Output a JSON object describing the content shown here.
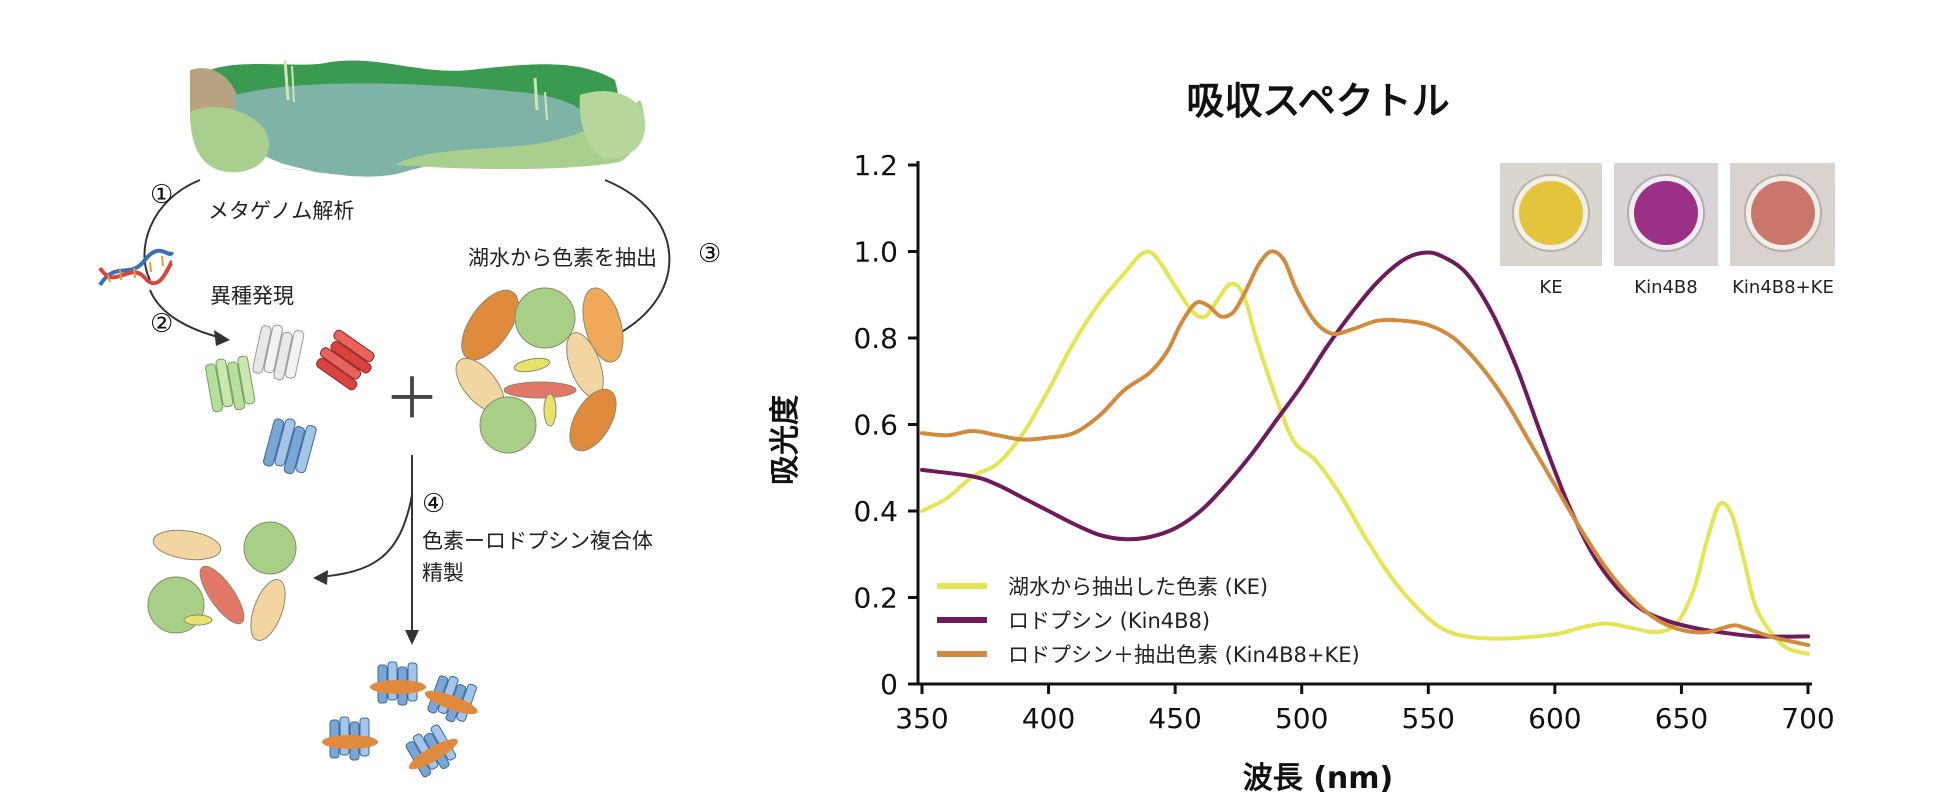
{
  "diagram": {
    "step1": {
      "num": "①",
      "label": "メタゲノム解析"
    },
    "step_expr": {
      "num": "②",
      "label": "異種発現"
    },
    "step3": {
      "num": "③",
      "label": "湖水から色素を抽出"
    },
    "step4": {
      "num": "④",
      "label_line1": "色素ーロドプシン複合体",
      "label_line2": "精製"
    },
    "plus": "＋"
  },
  "swatches": [
    {
      "label": "KE",
      "color": "#e3c43c"
    },
    {
      "label": "Kin4B8",
      "color": "#9c2f86"
    },
    {
      "label": "Kin4B8+KE",
      "color": "#c9776a"
    }
  ],
  "chart_data": {
    "type": "line",
    "title": "吸収スペクトル",
    "xlabel": "波長 (nm)",
    "ylabel": "吸光度",
    "xlim": [
      350,
      700
    ],
    "ylim": [
      0,
      1.2
    ],
    "x_ticks": [
      "350",
      "400",
      "450",
      "500",
      "550",
      "600",
      "650",
      "700"
    ],
    "y_ticks": [
      "0",
      "0.2",
      "0.4",
      "0.6",
      "0.8",
      "1.0",
      "1.2"
    ],
    "legend_position": "bottom-left",
    "series": [
      {
        "name": "湖水から抽出した色素 (KE)",
        "color": "#e5e452",
        "points": [
          [
            350,
            0.4
          ],
          [
            360,
            0.43
          ],
          [
            370,
            0.48
          ],
          [
            380,
            0.51
          ],
          [
            390,
            0.58
          ],
          [
            400,
            0.68
          ],
          [
            410,
            0.79
          ],
          [
            420,
            0.88
          ],
          [
            430,
            0.95
          ],
          [
            437,
            0.995
          ],
          [
            442,
            0.99
          ],
          [
            450,
            0.92
          ],
          [
            457,
            0.86
          ],
          [
            462,
            0.85
          ],
          [
            467,
            0.89
          ],
          [
            472,
            0.925
          ],
          [
            477,
            0.9
          ],
          [
            482,
            0.8
          ],
          [
            490,
            0.66
          ],
          [
            497,
            0.56
          ],
          [
            505,
            0.52
          ],
          [
            515,
            0.44
          ],
          [
            525,
            0.34
          ],
          [
            535,
            0.25
          ],
          [
            545,
            0.18
          ],
          [
            555,
            0.13
          ],
          [
            565,
            0.11
          ],
          [
            580,
            0.105
          ],
          [
            600,
            0.115
          ],
          [
            610,
            0.13
          ],
          [
            620,
            0.14
          ],
          [
            630,
            0.13
          ],
          [
            640,
            0.12
          ],
          [
            648,
            0.14
          ],
          [
            655,
            0.22
          ],
          [
            660,
            0.33
          ],
          [
            665,
            0.415
          ],
          [
            670,
            0.39
          ],
          [
            675,
            0.28
          ],
          [
            680,
            0.17
          ],
          [
            690,
            0.09
          ],
          [
            700,
            0.07
          ]
        ]
      },
      {
        "name": "ロドプシン (Kin4B8)",
        "color": "#6d1b5c",
        "points": [
          [
            350,
            0.495
          ],
          [
            370,
            0.48
          ],
          [
            380,
            0.46
          ],
          [
            390,
            0.43
          ],
          [
            400,
            0.4
          ],
          [
            410,
            0.37
          ],
          [
            420,
            0.345
          ],
          [
            430,
            0.335
          ],
          [
            440,
            0.34
          ],
          [
            450,
            0.36
          ],
          [
            460,
            0.4
          ],
          [
            470,
            0.46
          ],
          [
            480,
            0.53
          ],
          [
            490,
            0.61
          ],
          [
            500,
            0.69
          ],
          [
            510,
            0.78
          ],
          [
            520,
            0.86
          ],
          [
            530,
            0.93
          ],
          [
            540,
            0.98
          ],
          [
            548,
            0.997
          ],
          [
            555,
            0.99
          ],
          [
            565,
            0.95
          ],
          [
            575,
            0.86
          ],
          [
            585,
            0.73
          ],
          [
            595,
            0.57
          ],
          [
            605,
            0.42
          ],
          [
            615,
            0.3
          ],
          [
            625,
            0.22
          ],
          [
            635,
            0.17
          ],
          [
            645,
            0.145
          ],
          [
            655,
            0.13
          ],
          [
            665,
            0.12
          ],
          [
            680,
            0.11
          ],
          [
            700,
            0.11
          ]
        ]
      },
      {
        "name": "ロドプシン＋抽出色素 (Kin4B8+KE)",
        "color": "#d28a3c",
        "points": [
          [
            350,
            0.58
          ],
          [
            360,
            0.575
          ],
          [
            370,
            0.585
          ],
          [
            380,
            0.575
          ],
          [
            390,
            0.565
          ],
          [
            400,
            0.57
          ],
          [
            410,
            0.58
          ],
          [
            420,
            0.62
          ],
          [
            430,
            0.68
          ],
          [
            440,
            0.72
          ],
          [
            447,
            0.77
          ],
          [
            452,
            0.83
          ],
          [
            458,
            0.88
          ],
          [
            463,
            0.875
          ],
          [
            468,
            0.85
          ],
          [
            473,
            0.86
          ],
          [
            478,
            0.91
          ],
          [
            483,
            0.97
          ],
          [
            488,
            1.0
          ],
          [
            493,
            0.98
          ],
          [
            498,
            0.91
          ],
          [
            505,
            0.84
          ],
          [
            512,
            0.81
          ],
          [
            520,
            0.82
          ],
          [
            530,
            0.84
          ],
          [
            540,
            0.84
          ],
          [
            550,
            0.83
          ],
          [
            560,
            0.8
          ],
          [
            570,
            0.74
          ],
          [
            580,
            0.66
          ],
          [
            590,
            0.56
          ],
          [
            600,
            0.46
          ],
          [
            610,
            0.36
          ],
          [
            620,
            0.27
          ],
          [
            630,
            0.2
          ],
          [
            640,
            0.15
          ],
          [
            650,
            0.125
          ],
          [
            660,
            0.12
          ],
          [
            670,
            0.135
          ],
          [
            675,
            0.13
          ],
          [
            685,
            0.11
          ],
          [
            700,
            0.09
          ]
        ]
      }
    ]
  }
}
